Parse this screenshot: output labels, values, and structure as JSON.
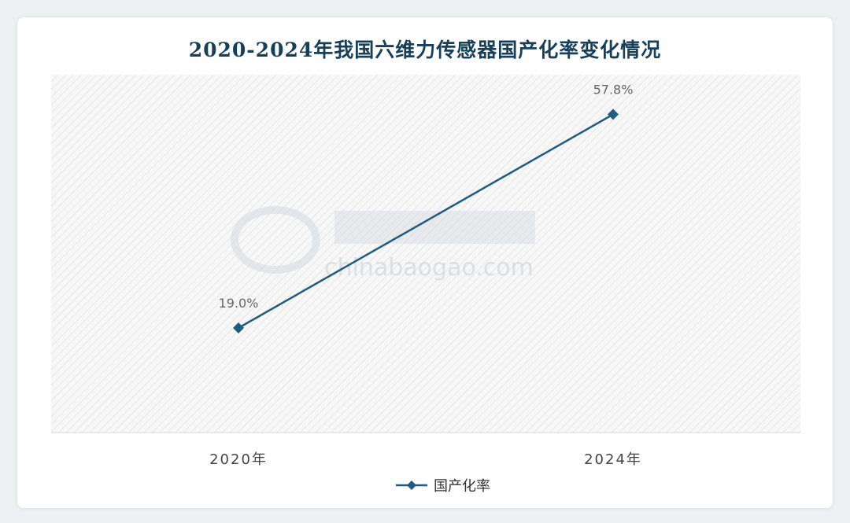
{
  "chart_data": {
    "type": "line",
    "title": "2020-2024年我国六维力传感器国产化率变化情况",
    "categories": [
      "2020年",
      "2024年"
    ],
    "series": [
      {
        "name": "国产化率",
        "values": [
          19.0,
          57.8
        ],
        "labels": [
          "19.0%",
          "57.8%"
        ],
        "color": "#1f5c80",
        "marker": "diamond"
      }
    ],
    "ylabel": "",
    "xlabel": "",
    "ylim": [
      0,
      65
    ],
    "grid": false,
    "legend": "bottom",
    "watermark": "chinabaogao.com"
  }
}
